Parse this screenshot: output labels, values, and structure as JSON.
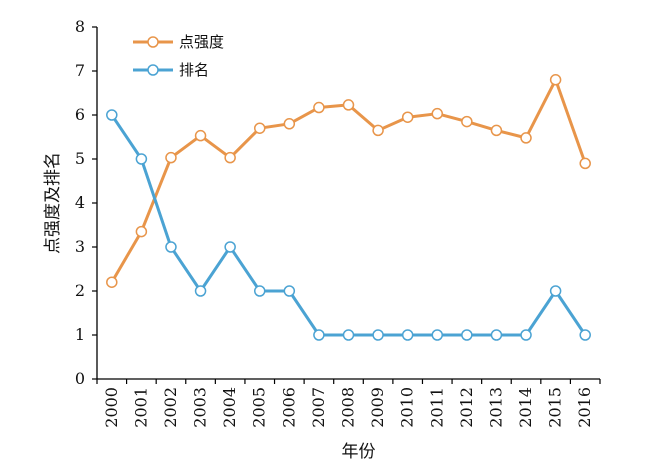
{
  "chart_data": {
    "type": "line",
    "xlabel": "年份",
    "ylabel": "点强度及排名",
    "ylim": [
      0,
      8
    ],
    "yticks": [
      0,
      1,
      2,
      3,
      4,
      5,
      6,
      7,
      8
    ],
    "categories": [
      "2000",
      "2001",
      "2002",
      "2003",
      "2004",
      "2005",
      "2006",
      "2007",
      "2008",
      "2009",
      "2010",
      "2011",
      "2012",
      "2013",
      "2014",
      "2015",
      "2016"
    ],
    "legend_position": "top-left",
    "grid": false,
    "series": [
      {
        "name": "点强度",
        "color": "#E8954A",
        "values": [
          2.2,
          3.35,
          5.03,
          5.53,
          5.03,
          5.7,
          5.8,
          6.17,
          6.23,
          5.65,
          5.95,
          6.03,
          5.85,
          5.65,
          5.48,
          6.8,
          4.9
        ]
      },
      {
        "name": "排名",
        "color": "#4BA3D3",
        "values": [
          6,
          5,
          3,
          2,
          3,
          2,
          2,
          1,
          1,
          1,
          1,
          1,
          1,
          1,
          1,
          2,
          1
        ]
      }
    ]
  }
}
